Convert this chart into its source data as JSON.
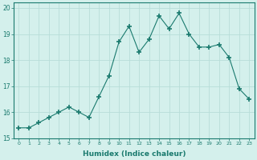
{
  "x": [
    0,
    1,
    2,
    3,
    4,
    5,
    6,
    7,
    8,
    9,
    10,
    11,
    12,
    13,
    14,
    15,
    16,
    17,
    18,
    19,
    20,
    21,
    22,
    23
  ],
  "y": [
    15.4,
    15.4,
    15.6,
    15.8,
    16.0,
    16.2,
    16.0,
    15.8,
    16.6,
    17.4,
    18.7,
    19.3,
    18.3,
    18.8,
    19.7,
    19.2,
    19.8,
    19.0,
    18.5,
    18.5,
    18.6,
    18.1,
    16.9,
    16.5
  ],
  "line_color": "#1a7a6e",
  "marker_color": "#1a7a6e",
  "bg_color": "#d4f0ec",
  "grid_color": "#b8ddd8",
  "xlabel": "Humidex (Indice chaleur)",
  "xlim": [
    -0.5,
    23.5
  ],
  "ylim": [
    15.0,
    20.2
  ],
  "yticks": [
    15,
    16,
    17,
    18,
    19,
    20
  ],
  "xticks": [
    0,
    1,
    2,
    3,
    4,
    5,
    6,
    7,
    8,
    9,
    10,
    11,
    12,
    13,
    14,
    15,
    16,
    17,
    18,
    19,
    20,
    21,
    22,
    23
  ]
}
